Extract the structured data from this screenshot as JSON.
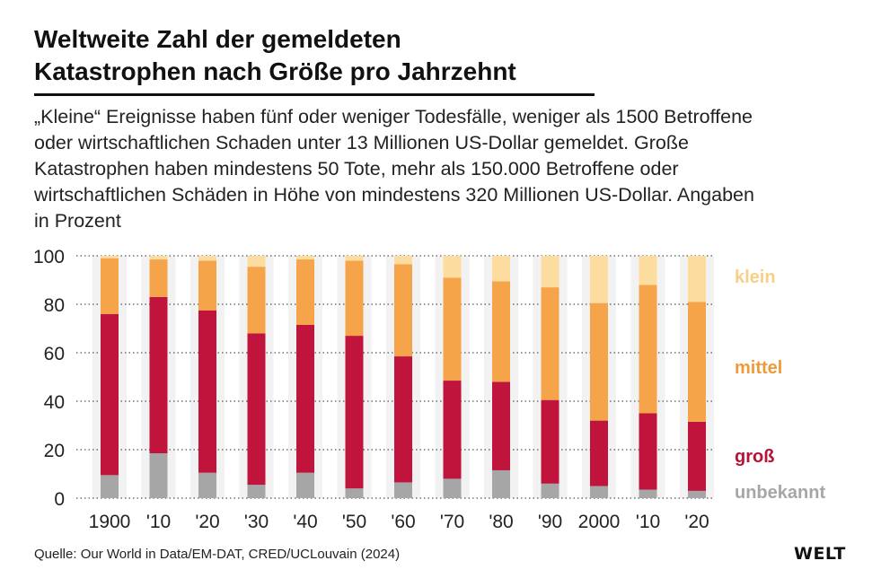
{
  "title_line1": "Weltweite Zahl der gemeldeten",
  "title_line2": "Katastrophen nach Größe pro Jahrzehnt",
  "subtitle": "„Kleine“ Ereignisse haben fünf oder weniger Todesfälle, weniger als 1500 Betroffene oder wirtschaftlichen Schaden unter 13 Millionen US-Dollar gemeldet. Große Katastrophen haben mindestens 50 Tote, mehr als 150.000 Betroffene oder wirtschaftlichen Schäden in Höhe von mindestens 320 Millionen US-Dollar. Angaben in Prozent",
  "source": "Quelle: Our World in Data/EM-DAT, CRED/UCLouvain (2024)",
  "logo": "WELT",
  "chart_data": {
    "type": "bar",
    "stacked": true,
    "categories": [
      "1900",
      "'10",
      "'20",
      "'30",
      "'40",
      "'50",
      "'60",
      "'70",
      "'80",
      "'90",
      "2000",
      "'10",
      "'20"
    ],
    "ylim": [
      0,
      100
    ],
    "yticks": [
      0,
      20,
      40,
      60,
      80,
      100
    ],
    "grid": "horizontal dotted",
    "legend": "right, labels placed beside stacks",
    "series": [
      {
        "name": "unbekannt",
        "color": "#a6a6a6",
        "label_color": "#a6a6a6",
        "values": [
          9.5,
          18.5,
          10.5,
          5.5,
          10.5,
          4,
          6.5,
          8,
          11.5,
          6,
          5,
          3.5,
          3
        ]
      },
      {
        "name": "groß",
        "color": "#c0143c",
        "label_color": "#b81237",
        "values": [
          66.5,
          64.5,
          67,
          62.5,
          61,
          63,
          52,
          40.5,
          36.5,
          34.5,
          27,
          31.5,
          28.5
        ]
      },
      {
        "name": "mittel",
        "color": "#f5a449",
        "label_color": "#ef9a3a",
        "values": [
          23,
          15.5,
          20.5,
          27.5,
          27,
          31,
          38,
          42.5,
          41.5,
          46.5,
          48.5,
          53,
          49.5
        ]
      },
      {
        "name": "klein",
        "color": "#fddc9f",
        "label_color": "#f8cf88",
        "values": [
          1,
          1.5,
          2,
          4.5,
          1.5,
          2,
          3.5,
          9,
          10.5,
          13,
          19.5,
          12,
          19
        ]
      }
    ]
  }
}
